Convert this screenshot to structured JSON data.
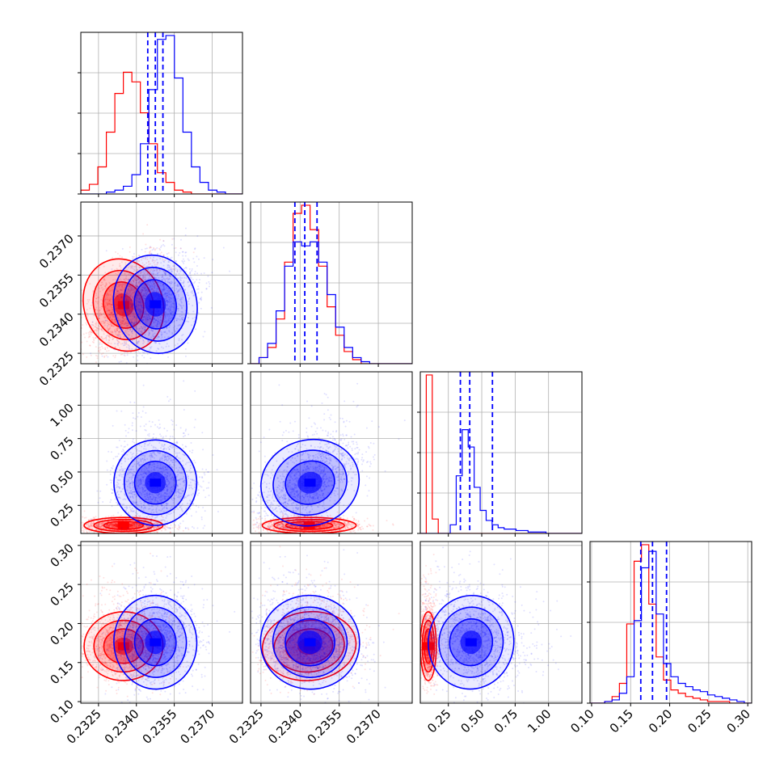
{
  "chart_data": {
    "type": "corner",
    "title": "",
    "parameters": [
      "",
      "",
      "",
      ""
    ],
    "colors": {
      "red": "#ff0000",
      "blue": "#0000ff",
      "grid": "#b0b0b0"
    },
    "series": [
      {
        "color": "red",
        "means": [
          0.23349,
          0.23435,
          0.1,
          0.171
        ],
        "sigmas": [
          0.00078,
          0.0009,
          0.03,
          0.022
        ]
      },
      {
        "color": "blue",
        "means": [
          0.23475,
          0.23438,
          0.42,
          0.176
        ],
        "sigmas": [
          0.00082,
          0.00095,
          0.16,
          0.03
        ]
      }
    ],
    "quantiles_blue": [
      [
        0.23445,
        0.23475,
        0.23505
      ],
      [
        0.2338,
        0.23418,
        0.23465
      ],
      [
        0.34,
        0.41,
        0.58
      ],
      [
        0.163,
        0.178,
        0.196
      ]
    ],
    "axes": [
      {
        "range": [
          0.2318,
          0.2382
        ],
        "ticks": [
          0.2325,
          0.234,
          0.2355,
          0.237
        ],
        "tick_labels": [
          "0.2325",
          "0.2340",
          "0.2355",
          "0.2370"
        ]
      },
      {
        "range": [
          0.2321,
          0.2383
        ],
        "ticks": [
          0.2325,
          0.234,
          0.2355,
          0.237
        ],
        "tick_labels": [
          "0.2325",
          "0.2340",
          "0.2355",
          "0.2370"
        ]
      },
      {
        "range": [
          0.04,
          1.25
        ],
        "ticks": [
          0.25,
          0.5,
          0.75,
          1.0
        ],
        "tick_labels": [
          "0.25",
          "0.50",
          "0.75",
          "1.00"
        ]
      },
      {
        "range": [
          0.098,
          0.305
        ],
        "ticks": [
          0.1,
          0.15,
          0.2,
          0.25,
          0.3
        ],
        "tick_labels": [
          "0.10",
          "0.15",
          "0.20",
          "0.25",
          "0.30"
        ]
      }
    ],
    "histograms": [
      {
        "red": [
          2,
          5,
          14,
          32,
          52,
          63,
          58,
          42,
          26,
          11,
          6,
          2,
          1,
          0,
          0,
          0,
          0,
          0,
          0
        ],
        "blue": [
          0,
          0,
          0,
          1,
          2,
          4,
          10,
          26,
          54,
          80,
          82,
          60,
          32,
          14,
          6,
          2,
          1,
          0,
          0
        ]
      },
      {
        "red": [
          0,
          3,
          8,
          22,
          50,
          74,
          78,
          66,
          48,
          28,
          14,
          6,
          2,
          0,
          0,
          0,
          0,
          0,
          0
        ],
        "blue": [
          0,
          3,
          10,
          26,
          48,
          60,
          58,
          60,
          50,
          34,
          18,
          8,
          3,
          1,
          0,
          0,
          0,
          0,
          0
        ]
      },
      {
        "red": [
          0,
          110,
          10,
          0,
          0,
          0,
          0,
          0,
          0,
          0,
          0,
          0,
          0,
          0,
          0,
          0,
          0,
          0,
          0,
          0,
          0,
          0,
          0,
          0,
          0,
          0,
          0
        ],
        "blue": [
          0,
          0,
          0,
          0,
          0,
          6,
          40,
          72,
          60,
          32,
          16,
          9,
          6,
          4,
          3,
          3,
          2,
          2,
          1,
          1,
          1,
          0,
          0,
          0,
          0,
          0,
          0
        ]
      },
      {
        "red": [
          0,
          0,
          1,
          4,
          12,
          48,
          86,
          96,
          60,
          28,
          14,
          8,
          6,
          4,
          3,
          2,
          1,
          1,
          1,
          0,
          0,
          0
        ],
        "blue": [
          0,
          0,
          1,
          2,
          6,
          16,
          50,
          82,
          92,
          54,
          24,
          16,
          12,
          10,
          8,
          7,
          5,
          4,
          3,
          2,
          1,
          0
        ]
      }
    ],
    "grid": true,
    "legend": "none"
  }
}
